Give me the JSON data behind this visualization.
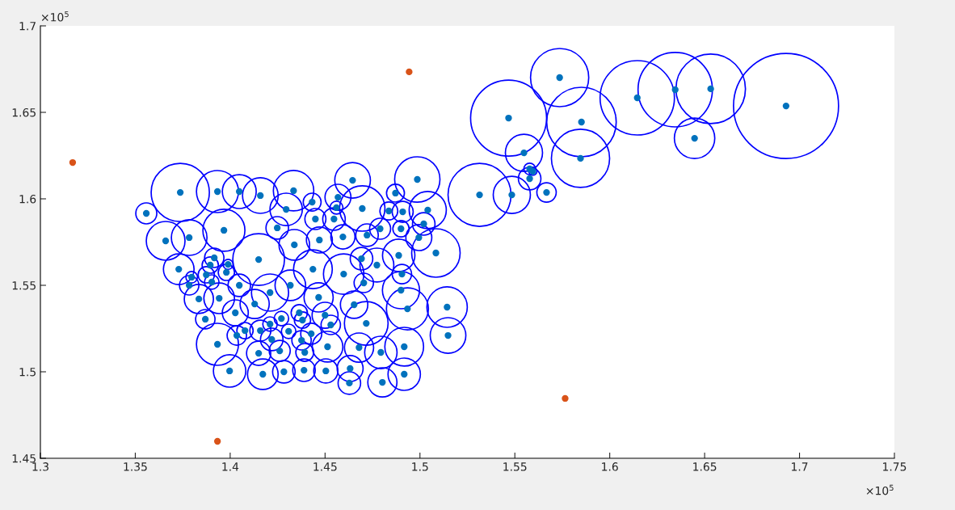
{
  "chart_data": {
    "type": "scatter",
    "xlim": [
      1.3,
      1.75
    ],
    "xticks": [
      1.3,
      1.35,
      1.4,
      1.45,
      1.5,
      1.55,
      1.6,
      1.65,
      1.7,
      1.75
    ],
    "ylim": [
      1.45,
      1.7
    ],
    "yticks": [
      1.45,
      1.5,
      1.55,
      1.6,
      1.65,
      1.7
    ],
    "annotations": [
      "×10$^{5}$",
      "×10$^{5}$"
    ],
    "series": [
      {
        "type": "bubble",
        "color": "#0000ff",
        "x": [
          1.3737,
          1.3933,
          1.4048,
          1.4159,
          1.3558,
          1.3967,
          1.366,
          1.3784,
          1.415,
          1.3916,
          1.3729,
          1.3895,
          1.3989,
          1.398,
          1.3874,
          1.3903,
          1.3797,
          1.3784,
          1.4048,
          1.421,
          1.3835,
          1.3942,
          1.4129,
          1.4027,
          1.3869,
          1.4078,
          1.4035,
          1.4159,
          1.421,
          1.4219,
          1.3933,
          1.415,
          1.3997,
          1.4172,
          1.4334,
          1.4432,
          1.4295,
          1.4568,
          1.4645,
          1.456,
          1.4696,
          1.4449,
          1.4547,
          1.4986,
          1.4871,
          1.4836,
          1.4909,
          1.5041,
          1.502,
          1.4248,
          1.4338,
          1.447,
          1.4594,
          1.4721,
          1.479,
          1.49,
          1.4994,
          1.5084,
          1.4888,
          1.4692,
          1.4773,
          1.4436,
          1.4598,
          1.4905,
          1.4704,
          1.4317,
          1.49,
          1.4466,
          1.4653,
          1.4934,
          1.5143,
          1.427,
          1.4364,
          1.4381,
          1.45,
          1.453,
          1.4717,
          1.5148,
          1.4308,
          1.4427,
          1.4376,
          1.4261,
          1.4393,
          1.4513,
          1.4679,
          1.4794,
          1.4917,
          1.4283,
          1.4389,
          1.4504,
          1.4632,
          1.4628,
          1.4802,
          1.4917,
          1.5736,
          1.5467,
          1.5851,
          1.6145,
          1.6345,
          1.6532,
          1.6929,
          1.6447,
          1.5548,
          1.5846,
          1.5578,
          1.5595,
          1.5578,
          1.5667,
          1.5314,
          1.5484
        ],
        "values": [
          1.6037,
          1.6042,
          1.6042,
          1.6019,
          1.5916,
          1.5818,
          1.5757,
          1.5776,
          1.5649,
          1.5659,
          1.5593,
          1.5617,
          1.5621,
          1.5575,
          1.5561,
          1.5519,
          1.5547,
          1.55,
          1.55,
          1.5458,
          1.5421,
          1.5425,
          1.5392,
          1.5341,
          1.5304,
          1.5238,
          1.521,
          1.5238,
          1.5276,
          1.5187,
          1.5159,
          1.5107,
          1.5005,
          1.4986,
          1.6047,
          1.5981,
          1.5939,
          1.6009,
          1.6107,
          1.5949,
          1.5944,
          1.5883,
          1.5883,
          1.6112,
          1.6033,
          1.593,
          1.5925,
          1.5935,
          1.5855,
          1.5832,
          1.5734,
          1.5762,
          1.578,
          1.579,
          1.5827,
          1.5827,
          1.5776,
          1.5687,
          1.5673,
          1.5654,
          1.5617,
          1.5593,
          1.5565,
          1.5565,
          1.5514,
          1.55,
          1.5472,
          1.543,
          1.5388,
          1.5364,
          1.5374,
          1.5308,
          1.5341,
          1.5299,
          1.5327,
          1.5271,
          1.528,
          1.521,
          1.5234,
          1.522,
          1.5182,
          1.5121,
          1.5112,
          1.5145,
          1.514,
          1.5112,
          1.5145,
          1.5,
          1.5009,
          1.5005,
          1.5019,
          1.4935,
          1.4939,
          1.4986,
          1.6701,
          1.6467,
          1.6444,
          1.6584,
          1.6631,
          1.6636,
          1.6537,
          1.635,
          1.6266,
          1.6234,
          1.6173,
          1.6159,
          1.6117,
          1.6037,
          1.6023,
          1.6023
        ],
        "sizes": [
          0.307,
          0.16,
          0.104,
          0.115,
          0.04,
          0.16,
          0.136,
          0.115,
          0.242,
          0.034,
          0.085,
          0.024,
          0.009,
          0.024,
          0.024,
          0.019,
          0.012,
          0.034,
          0.046,
          0.125,
          0.077,
          0.085,
          0.077,
          0.061,
          0.034,
          0.024,
          0.034,
          0.04,
          0.019,
          0.046,
          0.16,
          0.053,
          0.095,
          0.085,
          0.148,
          0.029,
          0.095,
          0.061,
          0.115,
          0.015,
          0.186,
          0.04,
          0.046,
          0.186,
          0.029,
          0.029,
          0.04,
          0.125,
          0.046,
          0.046,
          0.085,
          0.061,
          0.053,
          0.046,
          0.04,
          0.024,
          0.061,
          0.213,
          0.095,
          0.046,
          0.104,
          0.136,
          0.148,
          0.034,
          0.034,
          0.085,
          0.125,
          0.077,
          0.068,
          0.16,
          0.148,
          0.019,
          0.024,
          0.024,
          0.061,
          0.034,
          0.173,
          0.115,
          0.019,
          0.04,
          0.034,
          0.04,
          0.029,
          0.085,
          0.077,
          0.095,
          0.136,
          0.046,
          0.046,
          0.053,
          0.061,
          0.046,
          0.077,
          0.095,
          0.307,
          0.523,
          0.438,
          0.501,
          0.501,
          0.438,
          1,
          0.148,
          0.125,
          0.307,
          0.012,
          0.006,
          0.046,
          0.034,
          0.36,
          0.125
        ]
      },
      {
        "color": "#0072bd",
        "x": [
          1.3737,
          1.3933,
          1.4048,
          1.4159,
          1.3558,
          1.3967,
          1.366,
          1.3784,
          1.415,
          1.3916,
          1.3729,
          1.3895,
          1.3989,
          1.398,
          1.3874,
          1.3903,
          1.3797,
          1.3784,
          1.4048,
          1.421,
          1.3835,
          1.3942,
          1.4129,
          1.4027,
          1.3869,
          1.4078,
          1.4035,
          1.4159,
          1.421,
          1.4219,
          1.3933,
          1.415,
          1.3997,
          1.4172,
          1.4334,
          1.4432,
          1.4295,
          1.4568,
          1.4645,
          1.456,
          1.4696,
          1.4449,
          1.4547,
          1.4986,
          1.4871,
          1.4836,
          1.4909,
          1.5041,
          1.502,
          1.4248,
          1.4338,
          1.447,
          1.4594,
          1.4721,
          1.479,
          1.49,
          1.4994,
          1.5084,
          1.4888,
          1.4692,
          1.4773,
          1.4436,
          1.4598,
          1.4905,
          1.4704,
          1.4317,
          1.49,
          1.4466,
          1.4653,
          1.4934,
          1.5143,
          1.427,
          1.4364,
          1.4381,
          1.45,
          1.453,
          1.4717,
          1.5148,
          1.4308,
          1.4427,
          1.4376,
          1.4261,
          1.4393,
          1.4513,
          1.4679,
          1.4794,
          1.4917,
          1.4283,
          1.4389,
          1.4504,
          1.4632,
          1.4628,
          1.4802,
          1.4917,
          1.5736,
          1.5467,
          1.5851,
          1.6145,
          1.6345,
          1.6532,
          1.6929,
          1.6447,
          1.5548,
          1.5846,
          1.5578,
          1.5595,
          1.5578,
          1.5667,
          1.5314,
          1.5484
        ],
        "values": [
          1.6037,
          1.6042,
          1.6042,
          1.6019,
          1.5916,
          1.5818,
          1.5757,
          1.5776,
          1.5649,
          1.5659,
          1.5593,
          1.5617,
          1.5621,
          1.5575,
          1.5561,
          1.5519,
          1.5547,
          1.55,
          1.55,
          1.5458,
          1.5421,
          1.5425,
          1.5392,
          1.5341,
          1.5304,
          1.5238,
          1.521,
          1.5238,
          1.5276,
          1.5187,
          1.5159,
          1.5107,
          1.5005,
          1.4986,
          1.6047,
          1.5981,
          1.5939,
          1.6009,
          1.6107,
          1.5949,
          1.5944,
          1.5883,
          1.5883,
          1.6112,
          1.6033,
          1.593,
          1.5925,
          1.5935,
          1.5855,
          1.5832,
          1.5734,
          1.5762,
          1.578,
          1.579,
          1.5827,
          1.5827,
          1.5776,
          1.5687,
          1.5673,
          1.5654,
          1.5617,
          1.5593,
          1.5565,
          1.5565,
          1.5514,
          1.55,
          1.5472,
          1.543,
          1.5388,
          1.5364,
          1.5374,
          1.5308,
          1.5341,
          1.5299,
          1.5327,
          1.5271,
          1.528,
          1.521,
          1.5234,
          1.522,
          1.5182,
          1.5121,
          1.5112,
          1.5145,
          1.514,
          1.5112,
          1.5145,
          1.5,
          1.5009,
          1.5005,
          1.5019,
          1.4935,
          1.4939,
          1.4986,
          1.6701,
          1.6467,
          1.6444,
          1.6584,
          1.6631,
          1.6636,
          1.6537,
          1.635,
          1.6266,
          1.6234,
          1.6173,
          1.6159,
          1.6117,
          1.6037,
          1.6023,
          1.6023
        ]
      },
      {
        "color": "#d95319",
        "x": [
          1.317,
          1.4943,
          1.3933,
          1.5765
        ],
        "values": [
          1.621,
          1.6734,
          1.4598,
          1.4846
        ]
      }
    ]
  }
}
